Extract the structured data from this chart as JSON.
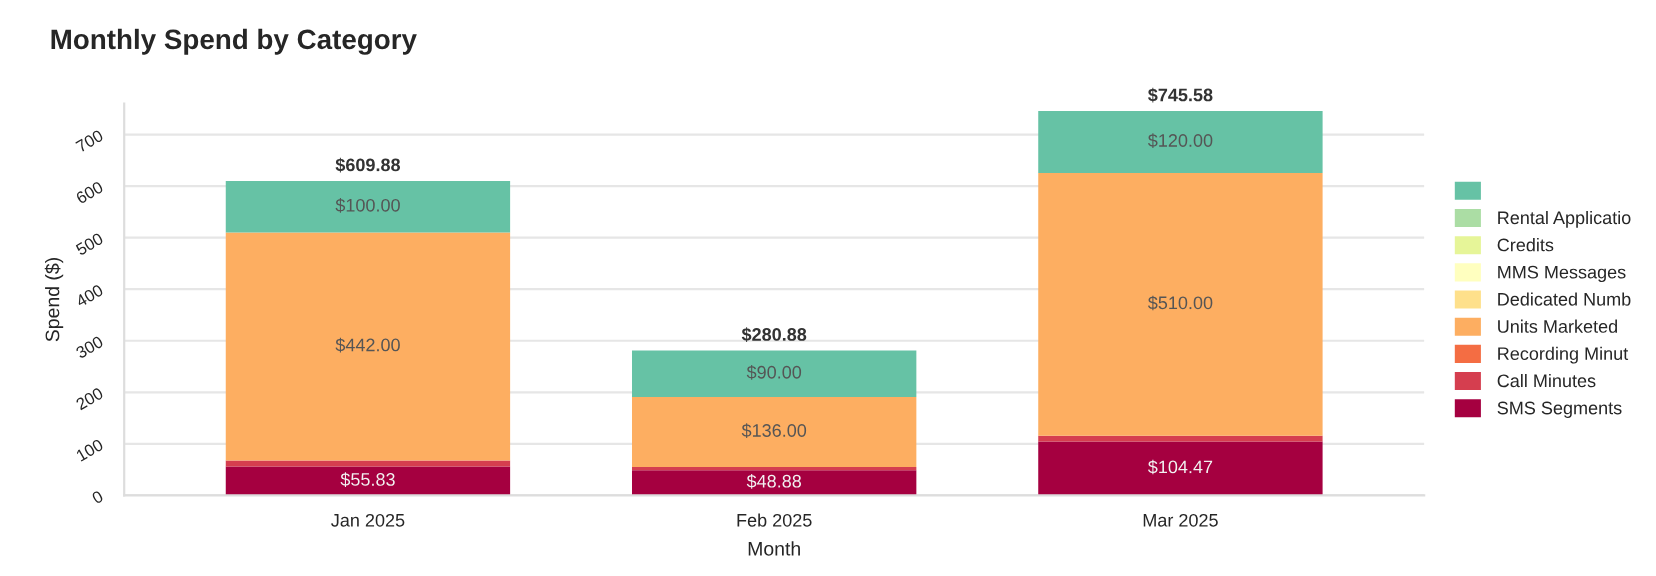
{
  "chart_data": {
    "type": "bar",
    "title": "Monthly Spend by Category",
    "xlabel": "Month",
    "ylabel": "Spend ($)",
    "categories": [
      "Jan 2025",
      "Feb 2025",
      "Mar 2025"
    ],
    "stacked": true,
    "series": [
      {
        "name": "SMS Segments",
        "color": "#a50040",
        "values": [
          55.83,
          48.88,
          104.47
        ],
        "value_labels": [
          "$55.83",
          "$48.88",
          "$104.47"
        ]
      },
      {
        "name": "Call Minutes",
        "color": "#d53e4f",
        "values": [
          12.05,
          6.0,
          11.11
        ],
        "value_labels": [
          null,
          null,
          null
        ]
      },
      {
        "name": "Recording Minut",
        "color": "#f46d43",
        "values": [
          0,
          0,
          0
        ],
        "value_labels": [
          null,
          null,
          null
        ]
      },
      {
        "name": "Units Marketed",
        "color": "#fdae61",
        "values": [
          442.0,
          136.0,
          510.0
        ],
        "value_labels": [
          "$442.00",
          "$136.00",
          "$510.00"
        ]
      },
      {
        "name": "Dedicated Numb",
        "color": "#fee08b",
        "values": [
          0,
          0,
          0
        ],
        "value_labels": [
          null,
          null,
          null
        ]
      },
      {
        "name": "MMS Messages",
        "color": "#ffffbf",
        "values": [
          0,
          0,
          0
        ],
        "value_labels": [
          null,
          null,
          null
        ]
      },
      {
        "name": "Credits",
        "color": "#e6f598",
        "values": [
          0,
          0,
          0
        ],
        "value_labels": [
          null,
          null,
          null
        ]
      },
      {
        "name": "Rental Applicatio",
        "color": "#abdda4",
        "values": [
          0,
          0,
          0
        ],
        "value_labels": [
          null,
          null,
          null
        ]
      },
      {
        "color": "#66c2a5",
        "values": [
          100.0,
          90.0,
          120.0
        ],
        "value_labels": [
          "$100.00",
          "$90.00",
          "$120.00"
        ]
      }
    ],
    "totals": [
      "$609.88",
      "$280.88",
      "$745.58"
    ],
    "ylim": [
      0,
      760
    ],
    "yticks": [
      0,
      100,
      200,
      300,
      400,
      500,
      600,
      700
    ],
    "grid": "y",
    "legend": "right"
  }
}
